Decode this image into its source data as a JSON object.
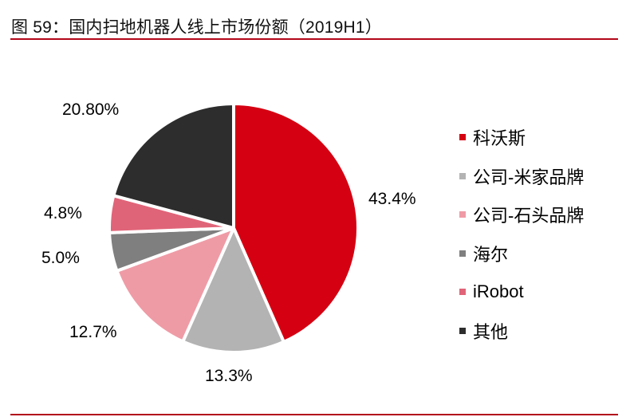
{
  "title": "图 59：国内扫地机器人线上市场份额（2019H1）",
  "colors": {
    "rule": "#b2071a"
  },
  "chart_data": {
    "type": "pie",
    "title": "图 59：国内扫地机器人线上市场份额（2019H1）",
    "start_angle": "12 o'clock",
    "direction": "clockwise",
    "legend_position": "right",
    "slices": [
      {
        "label": "科沃斯",
        "value": 43.4,
        "display": "43.4%",
        "color": "#d50012"
      },
      {
        "label": "公司-米家品牌",
        "value": 13.3,
        "display": "13.3%",
        "color": "#b3b3b3"
      },
      {
        "label": "公司-石头品牌",
        "value": 12.7,
        "display": "12.7%",
        "color": "#ef9ba6"
      },
      {
        "label": "海尔",
        "value": 5.0,
        "display": "5.0%",
        "color": "#7f7f7f"
      },
      {
        "label": "iRobot",
        "value": 4.8,
        "display": "4.8%",
        "color": "#e06478"
      },
      {
        "label": "其他",
        "value": 20.8,
        "display": "20.80%",
        "color": "#2d2d2d"
      }
    ]
  }
}
